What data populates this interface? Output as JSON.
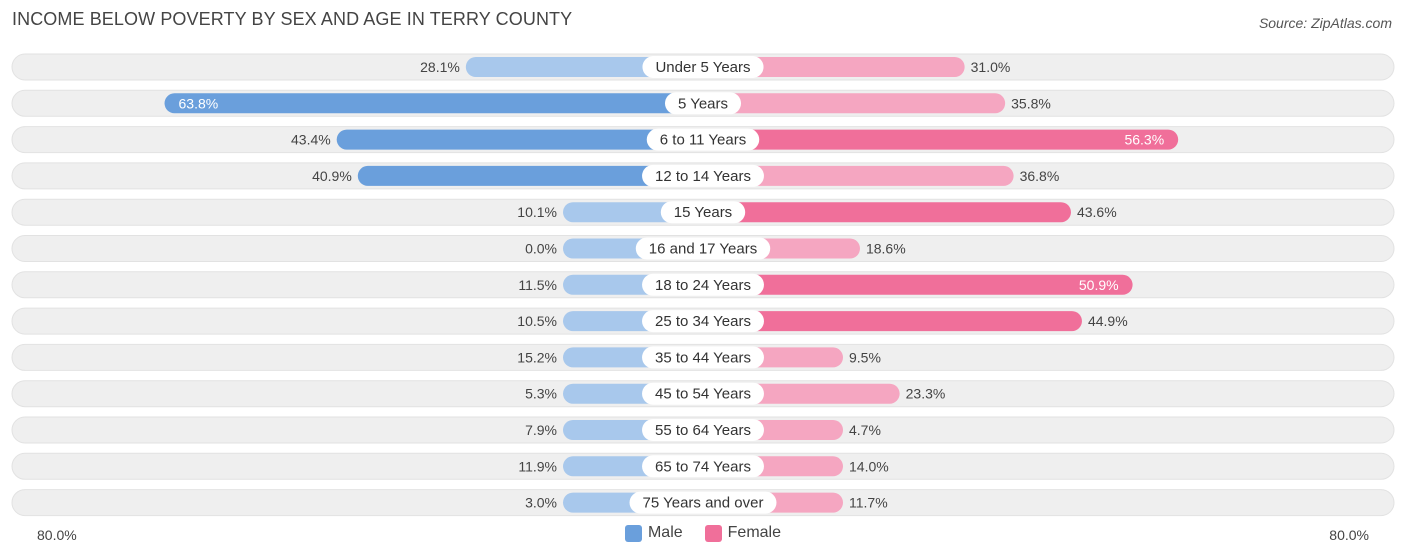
{
  "header": {
    "title": "INCOME BELOW POVERTY BY SEX AND AGE IN TERRY COUNTY",
    "source": "Source: ZipAtlas.com"
  },
  "colors": {
    "male_strong": "#6a9fdc",
    "male_light": "#a8c8ec",
    "female_strong": "#f06f9a",
    "female_light": "#f5a6c1",
    "row_bg": "#efefef"
  },
  "chart_data": {
    "type": "bar",
    "orientation": "horizontal-diverging",
    "title": "INCOME BELOW POVERTY BY SEX AND AGE IN TERRY COUNTY",
    "categories": [
      "Under 5 Years",
      "5 Years",
      "6 to 11 Years",
      "12 to 14 Years",
      "15 Years",
      "16 and 17 Years",
      "18 to 24 Years",
      "25 to 34 Years",
      "35 to 44 Years",
      "45 to 54 Years",
      "55 to 64 Years",
      "65 to 74 Years",
      "75 Years and over"
    ],
    "series": [
      {
        "name": "Male",
        "values": [
          28.1,
          63.8,
          43.4,
          40.9,
          10.1,
          0.0,
          11.5,
          10.5,
          15.2,
          5.3,
          7.9,
          11.9,
          3.0
        ],
        "labels": [
          "28.1%",
          "63.8%",
          "43.4%",
          "40.9%",
          "10.1%",
          "0.0%",
          "11.5%",
          "10.5%",
          "15.2%",
          "5.3%",
          "7.9%",
          "11.9%",
          "3.0%"
        ]
      },
      {
        "name": "Female",
        "values": [
          31.0,
          35.8,
          56.3,
          36.8,
          43.6,
          18.6,
          50.9,
          44.9,
          9.5,
          23.3,
          4.7,
          14.0,
          11.7
        ],
        "labels": [
          "31.0%",
          "35.8%",
          "56.3%",
          "36.8%",
          "43.6%",
          "18.6%",
          "50.9%",
          "44.9%",
          "9.5%",
          "23.3%",
          "4.7%",
          "14.0%",
          "11.7%"
        ]
      }
    ],
    "xlim": [
      -80,
      80
    ],
    "axis_labels": {
      "left": "80.0%",
      "right": "80.0%"
    },
    "legend": {
      "position": "bottom-center",
      "items": [
        "Male",
        "Female"
      ]
    },
    "grid": false
  }
}
